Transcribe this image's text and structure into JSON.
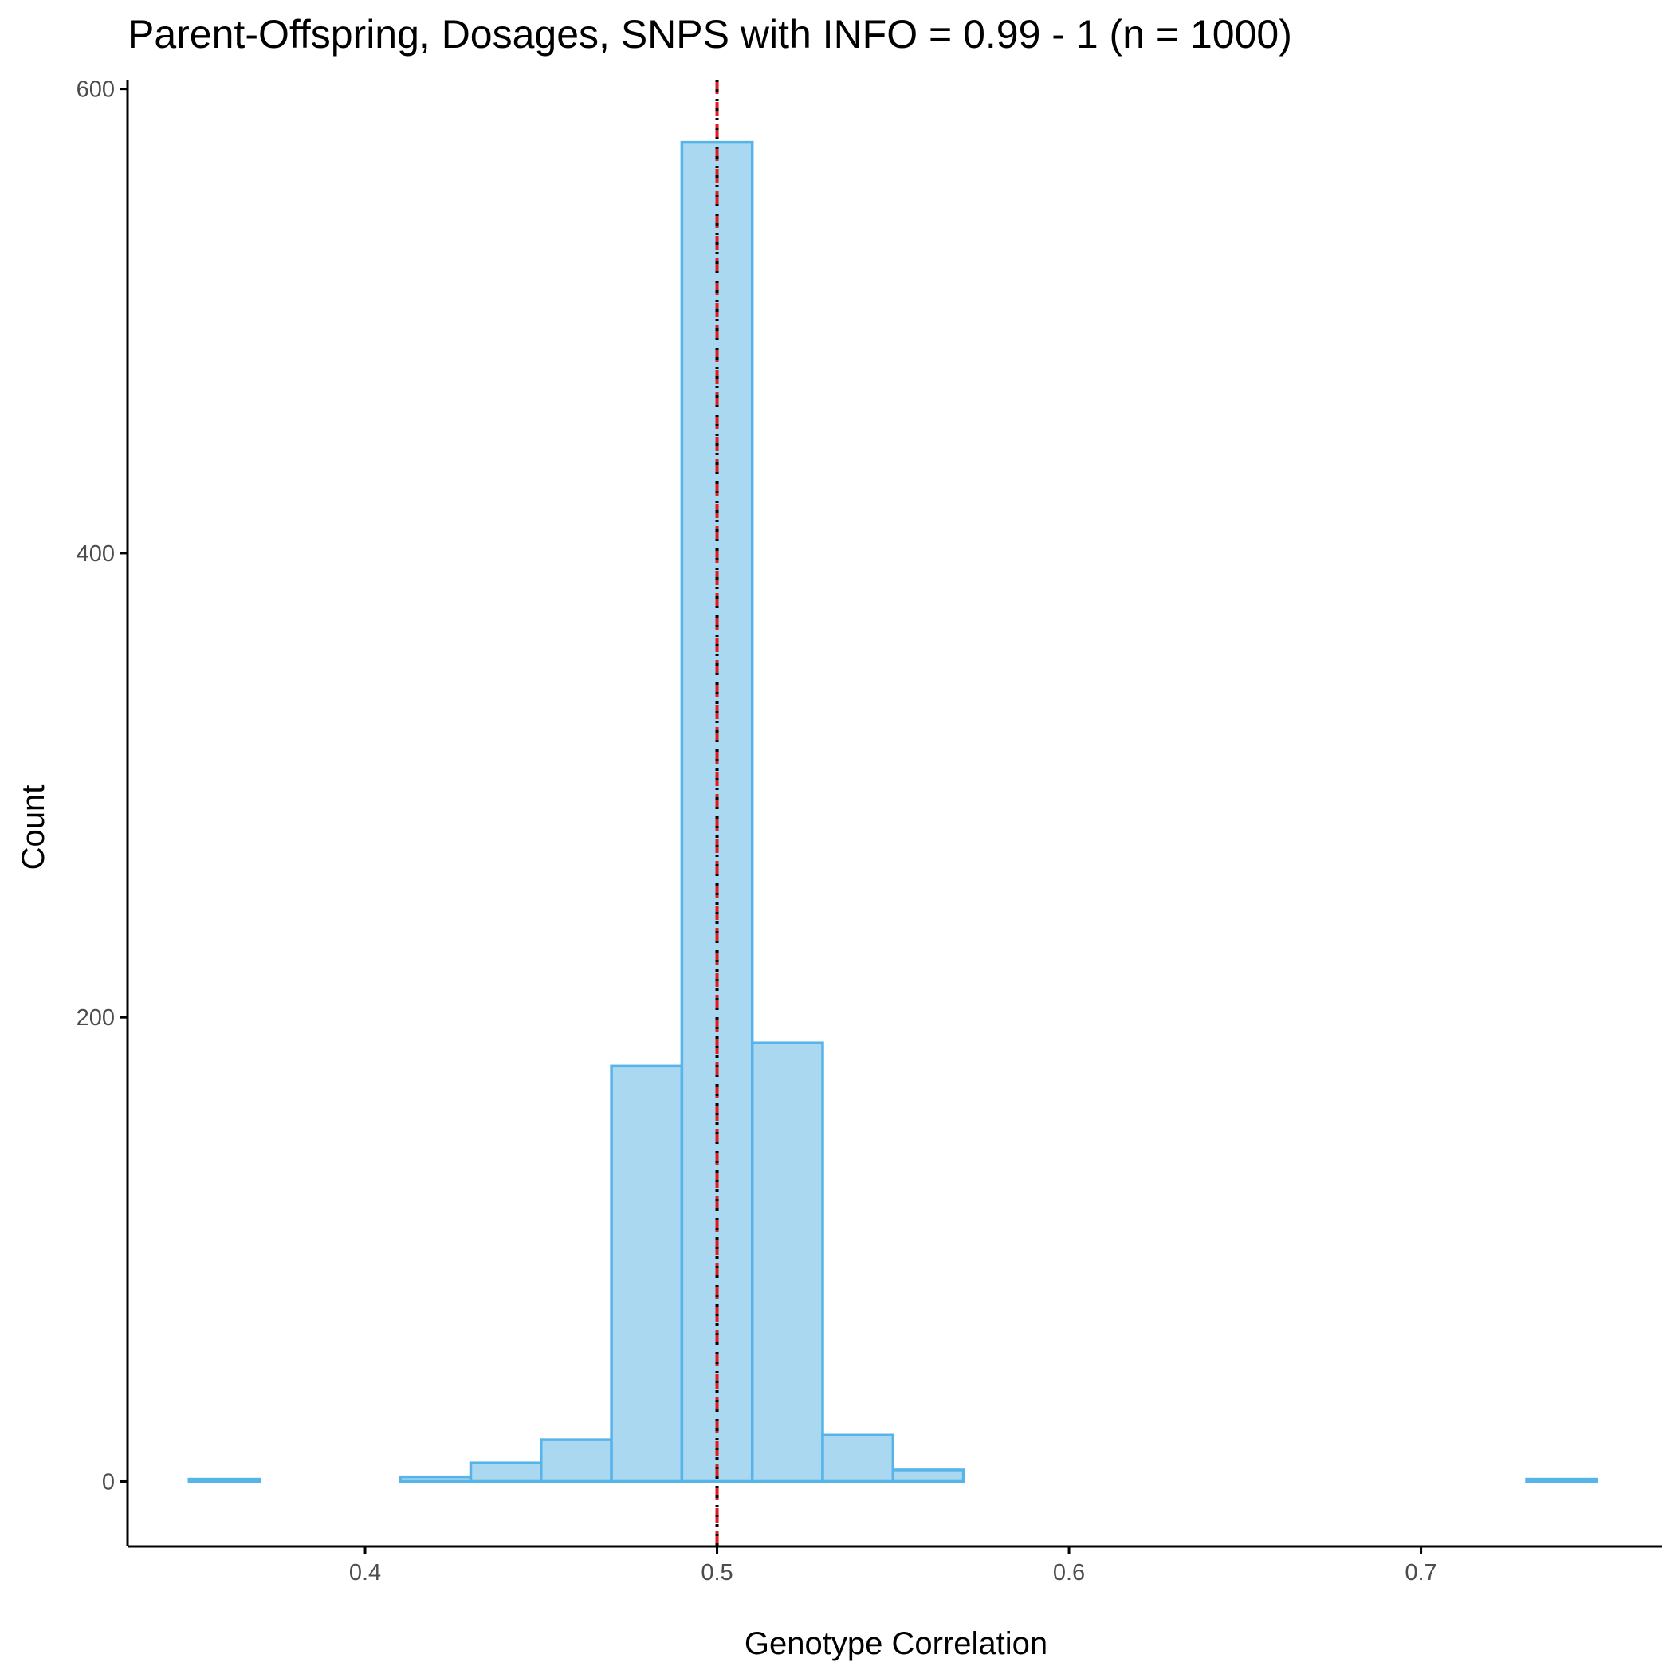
{
  "chart_data": {
    "type": "bar",
    "title": "Parent-Offspring, Dosages, SNPS with INFO = 0.99 - 1 (n = 1000)",
    "xlabel": "Genotype Correlation",
    "ylabel": "Count",
    "xlim": [
      0.3325,
      0.7685
    ],
    "ylim": [
      -28,
      604
    ],
    "x_ticks": [
      0.4,
      0.5,
      0.6,
      0.7
    ],
    "x_tick_labels": [
      "0.4",
      "0.5",
      "0.6",
      "0.7"
    ],
    "y_ticks": [
      0,
      200,
      400,
      600
    ],
    "y_tick_labels": [
      "0",
      "200",
      "400",
      "600"
    ],
    "bin_width": 0.02,
    "bins": [
      {
        "x0": 0.35,
        "x1": 0.37,
        "count": 1
      },
      {
        "x0": 0.37,
        "x1": 0.39,
        "count": 0
      },
      {
        "x0": 0.39,
        "x1": 0.41,
        "count": 0
      },
      {
        "x0": 0.41,
        "x1": 0.43,
        "count": 2
      },
      {
        "x0": 0.43,
        "x1": 0.45,
        "count": 8
      },
      {
        "x0": 0.45,
        "x1": 0.47,
        "count": 18
      },
      {
        "x0": 0.47,
        "x1": 0.49,
        "count": 179
      },
      {
        "x0": 0.49,
        "x1": 0.51,
        "count": 577
      },
      {
        "x0": 0.51,
        "x1": 0.53,
        "count": 189
      },
      {
        "x0": 0.53,
        "x1": 0.55,
        "count": 20
      },
      {
        "x0": 0.55,
        "x1": 0.57,
        "count": 5
      },
      {
        "x0": 0.57,
        "x1": 0.59,
        "count": 0
      },
      {
        "x0": 0.59,
        "x1": 0.61,
        "count": 0
      },
      {
        "x0": 0.61,
        "x1": 0.63,
        "count": 0
      },
      {
        "x0": 0.63,
        "x1": 0.65,
        "count": 0
      },
      {
        "x0": 0.65,
        "x1": 0.67,
        "count": 0
      },
      {
        "x0": 0.67,
        "x1": 0.69,
        "count": 0
      },
      {
        "x0": 0.69,
        "x1": 0.71,
        "count": 0
      },
      {
        "x0": 0.71,
        "x1": 0.73,
        "count": 0
      },
      {
        "x0": 0.73,
        "x1": 0.75,
        "count": 1
      }
    ],
    "reference_lines": [
      {
        "x": 0.5,
        "color": "#e41a1c",
        "style": "dashed"
      },
      {
        "x": 0.5,
        "color": "#000000",
        "style": "dotted"
      }
    ],
    "bar_fill": "#aad8f1",
    "bar_outline": "#56b4e9",
    "grid": false,
    "legend": "none"
  }
}
